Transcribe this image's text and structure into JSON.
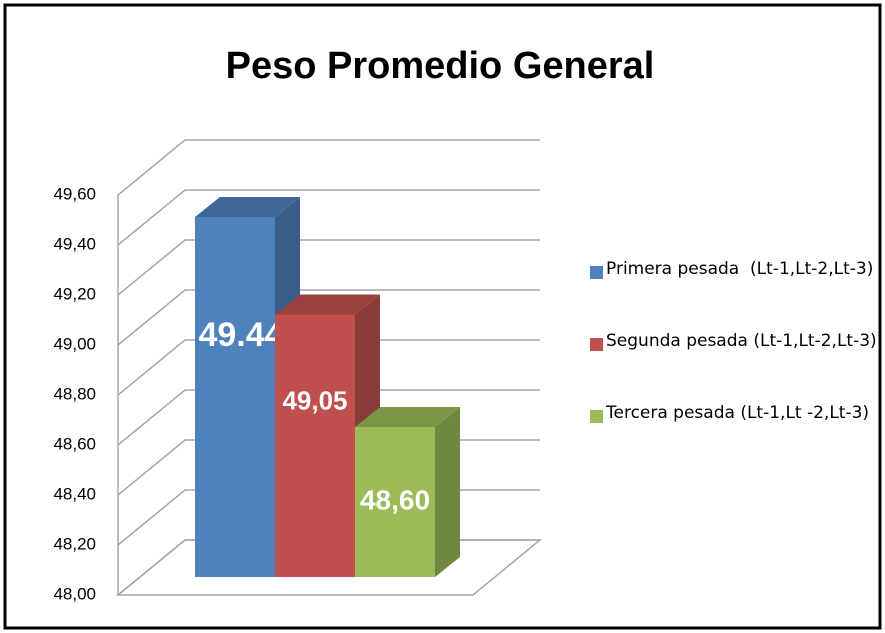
{
  "chart_data": {
    "type": "bar",
    "title": "Peso Promedio General",
    "categories": [
      null
    ],
    "series": [
      {
        "name": "Primera pesada  (Lt-1,Lt-2,Lt-3)",
        "color": "#4f81bd",
        "values": [
          49.44
        ],
        "value_labels": [
          "49.44"
        ]
      },
      {
        "name": "Segunda pesada (Lt-1,Lt-2,Lt-3)",
        "color": "#c0504d",
        "values": [
          49.05
        ],
        "value_labels": [
          "49,05"
        ]
      },
      {
        "name": "Tercera pesada (Lt-1,Lt -2,Lt-3)",
        "color": "#9bbb59",
        "values": [
          48.6
        ],
        "value_labels": [
          "48,60"
        ]
      }
    ],
    "ylim": [
      48,
      49.6
    ],
    "yticks": [
      {
        "value": 48,
        "label": "48,00"
      },
      {
        "value": 48.2,
        "label": "48,20"
      },
      {
        "value": 48.4,
        "label": "48,40"
      },
      {
        "value": 48.6,
        "label": "48,60"
      },
      {
        "value": 48.8,
        "label": "48,80"
      },
      {
        "value": 49,
        "label": "49,00"
      },
      {
        "value": 49.2,
        "label": "49,20"
      },
      {
        "value": 49.4,
        "label": "49,40"
      },
      {
        "value": 49.6,
        "label": "49,60"
      }
    ],
    "grid": true,
    "legend": "right"
  }
}
